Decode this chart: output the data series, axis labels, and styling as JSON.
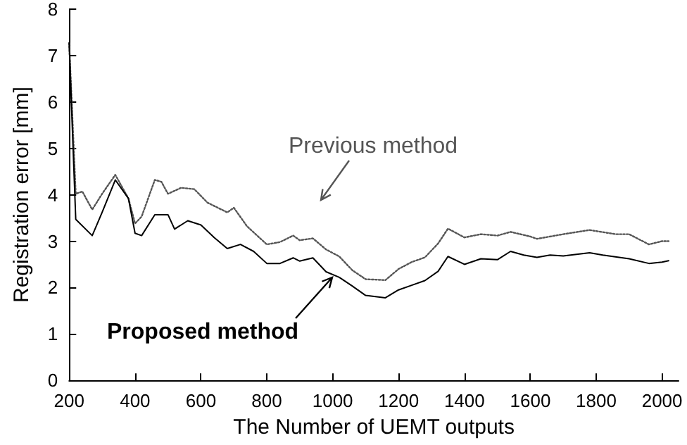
{
  "chart_data": {
    "type": "line",
    "xlabel": "The Number of UEMT outputs",
    "ylabel": "Registration error [mm]",
    "xlim": [
      200,
      2050
    ],
    "xticks": [
      200,
      400,
      600,
      800,
      1000,
      1200,
      1400,
      1600,
      1800,
      2000
    ],
    "ylim": [
      0,
      8
    ],
    "yticks": [
      0,
      1,
      2,
      3,
      4,
      5,
      6,
      7,
      8
    ],
    "grid": false,
    "legend": "center",
    "marker": "none",
    "series": [
      {
        "name": "Previous method",
        "color": "#555555",
        "line_style": "dotted",
        "x": [
          200,
          220,
          240,
          270,
          300,
          340,
          380,
          400,
          420,
          460,
          480,
          500,
          540,
          580,
          620,
          680,
          700,
          740,
          800,
          840,
          880,
          900,
          940,
          980,
          1020,
          1060,
          1100,
          1160,
          1200,
          1240,
          1280,
          1320,
          1350,
          1400,
          1450,
          1500,
          1540,
          1600,
          1620,
          1700,
          1780,
          1860,
          1900,
          1960,
          2000,
          2020
        ],
        "values": [
          7.27,
          4.02,
          4.07,
          3.68,
          4.02,
          4.43,
          3.92,
          3.38,
          3.53,
          4.32,
          4.28,
          4.02,
          4.15,
          4.12,
          3.83,
          3.62,
          3.72,
          3.32,
          2.93,
          2.98,
          3.12,
          3.02,
          3.06,
          2.82,
          2.67,
          2.37,
          2.18,
          2.16,
          2.4,
          2.55,
          2.65,
          2.95,
          3.27,
          3.08,
          3.15,
          3.12,
          3.2,
          3.1,
          3.05,
          3.15,
          3.24,
          3.15,
          3.15,
          2.93,
          3.0,
          3.0
        ]
      },
      {
        "name": "Proposed method",
        "color": "#000000",
        "line_style": "solid",
        "x": [
          200,
          220,
          270,
          300,
          340,
          380,
          400,
          420,
          460,
          500,
          520,
          560,
          600,
          640,
          680,
          720,
          760,
          800,
          840,
          880,
          900,
          940,
          980,
          1020,
          1060,
          1100,
          1160,
          1200,
          1240,
          1280,
          1320,
          1350,
          1400,
          1450,
          1500,
          1540,
          1580,
          1620,
          1660,
          1700,
          1780,
          1820,
          1900,
          1960,
          2000,
          2020
        ],
        "values": [
          7.27,
          3.47,
          3.12,
          3.62,
          4.32,
          3.92,
          3.17,
          3.12,
          3.57,
          3.57,
          3.26,
          3.44,
          3.35,
          3.08,
          2.84,
          2.93,
          2.78,
          2.52,
          2.52,
          2.64,
          2.57,
          2.64,
          2.34,
          2.22,
          2.03,
          1.83,
          1.78,
          1.95,
          2.05,
          2.15,
          2.35,
          2.67,
          2.5,
          2.62,
          2.6,
          2.78,
          2.7,
          2.65,
          2.7,
          2.68,
          2.75,
          2.7,
          2.62,
          2.52,
          2.55,
          2.58
        ]
      }
    ]
  }
}
